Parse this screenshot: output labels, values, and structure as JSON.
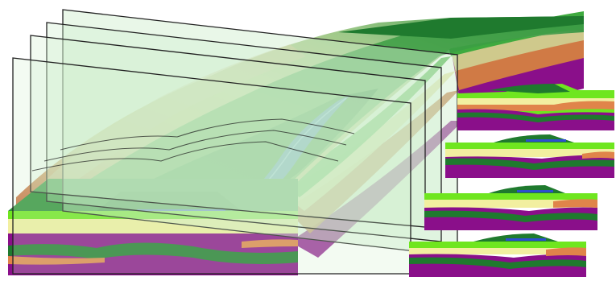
{
  "figure": {
    "kind": "3d-geological-block-with-cross-sections",
    "section_panel_count": 4,
    "slice_plane_count": 4,
    "colors": {
      "background": "#ffffff",
      "purple": "#8a0f8a",
      "dark_green": "#1f7a2e",
      "mid_green": "#3faa3f",
      "bright_green": "#6fe61f",
      "light_yellow": "#f2efa0",
      "khaki": "#cfc98c",
      "orange": "#e0844a",
      "brown_orange": "#c8663a",
      "beige": "#e9ddb0",
      "water_blue": "#3a7bd5",
      "plane_tint": "#cfeecd",
      "plane_edge": "#222222"
    }
  }
}
